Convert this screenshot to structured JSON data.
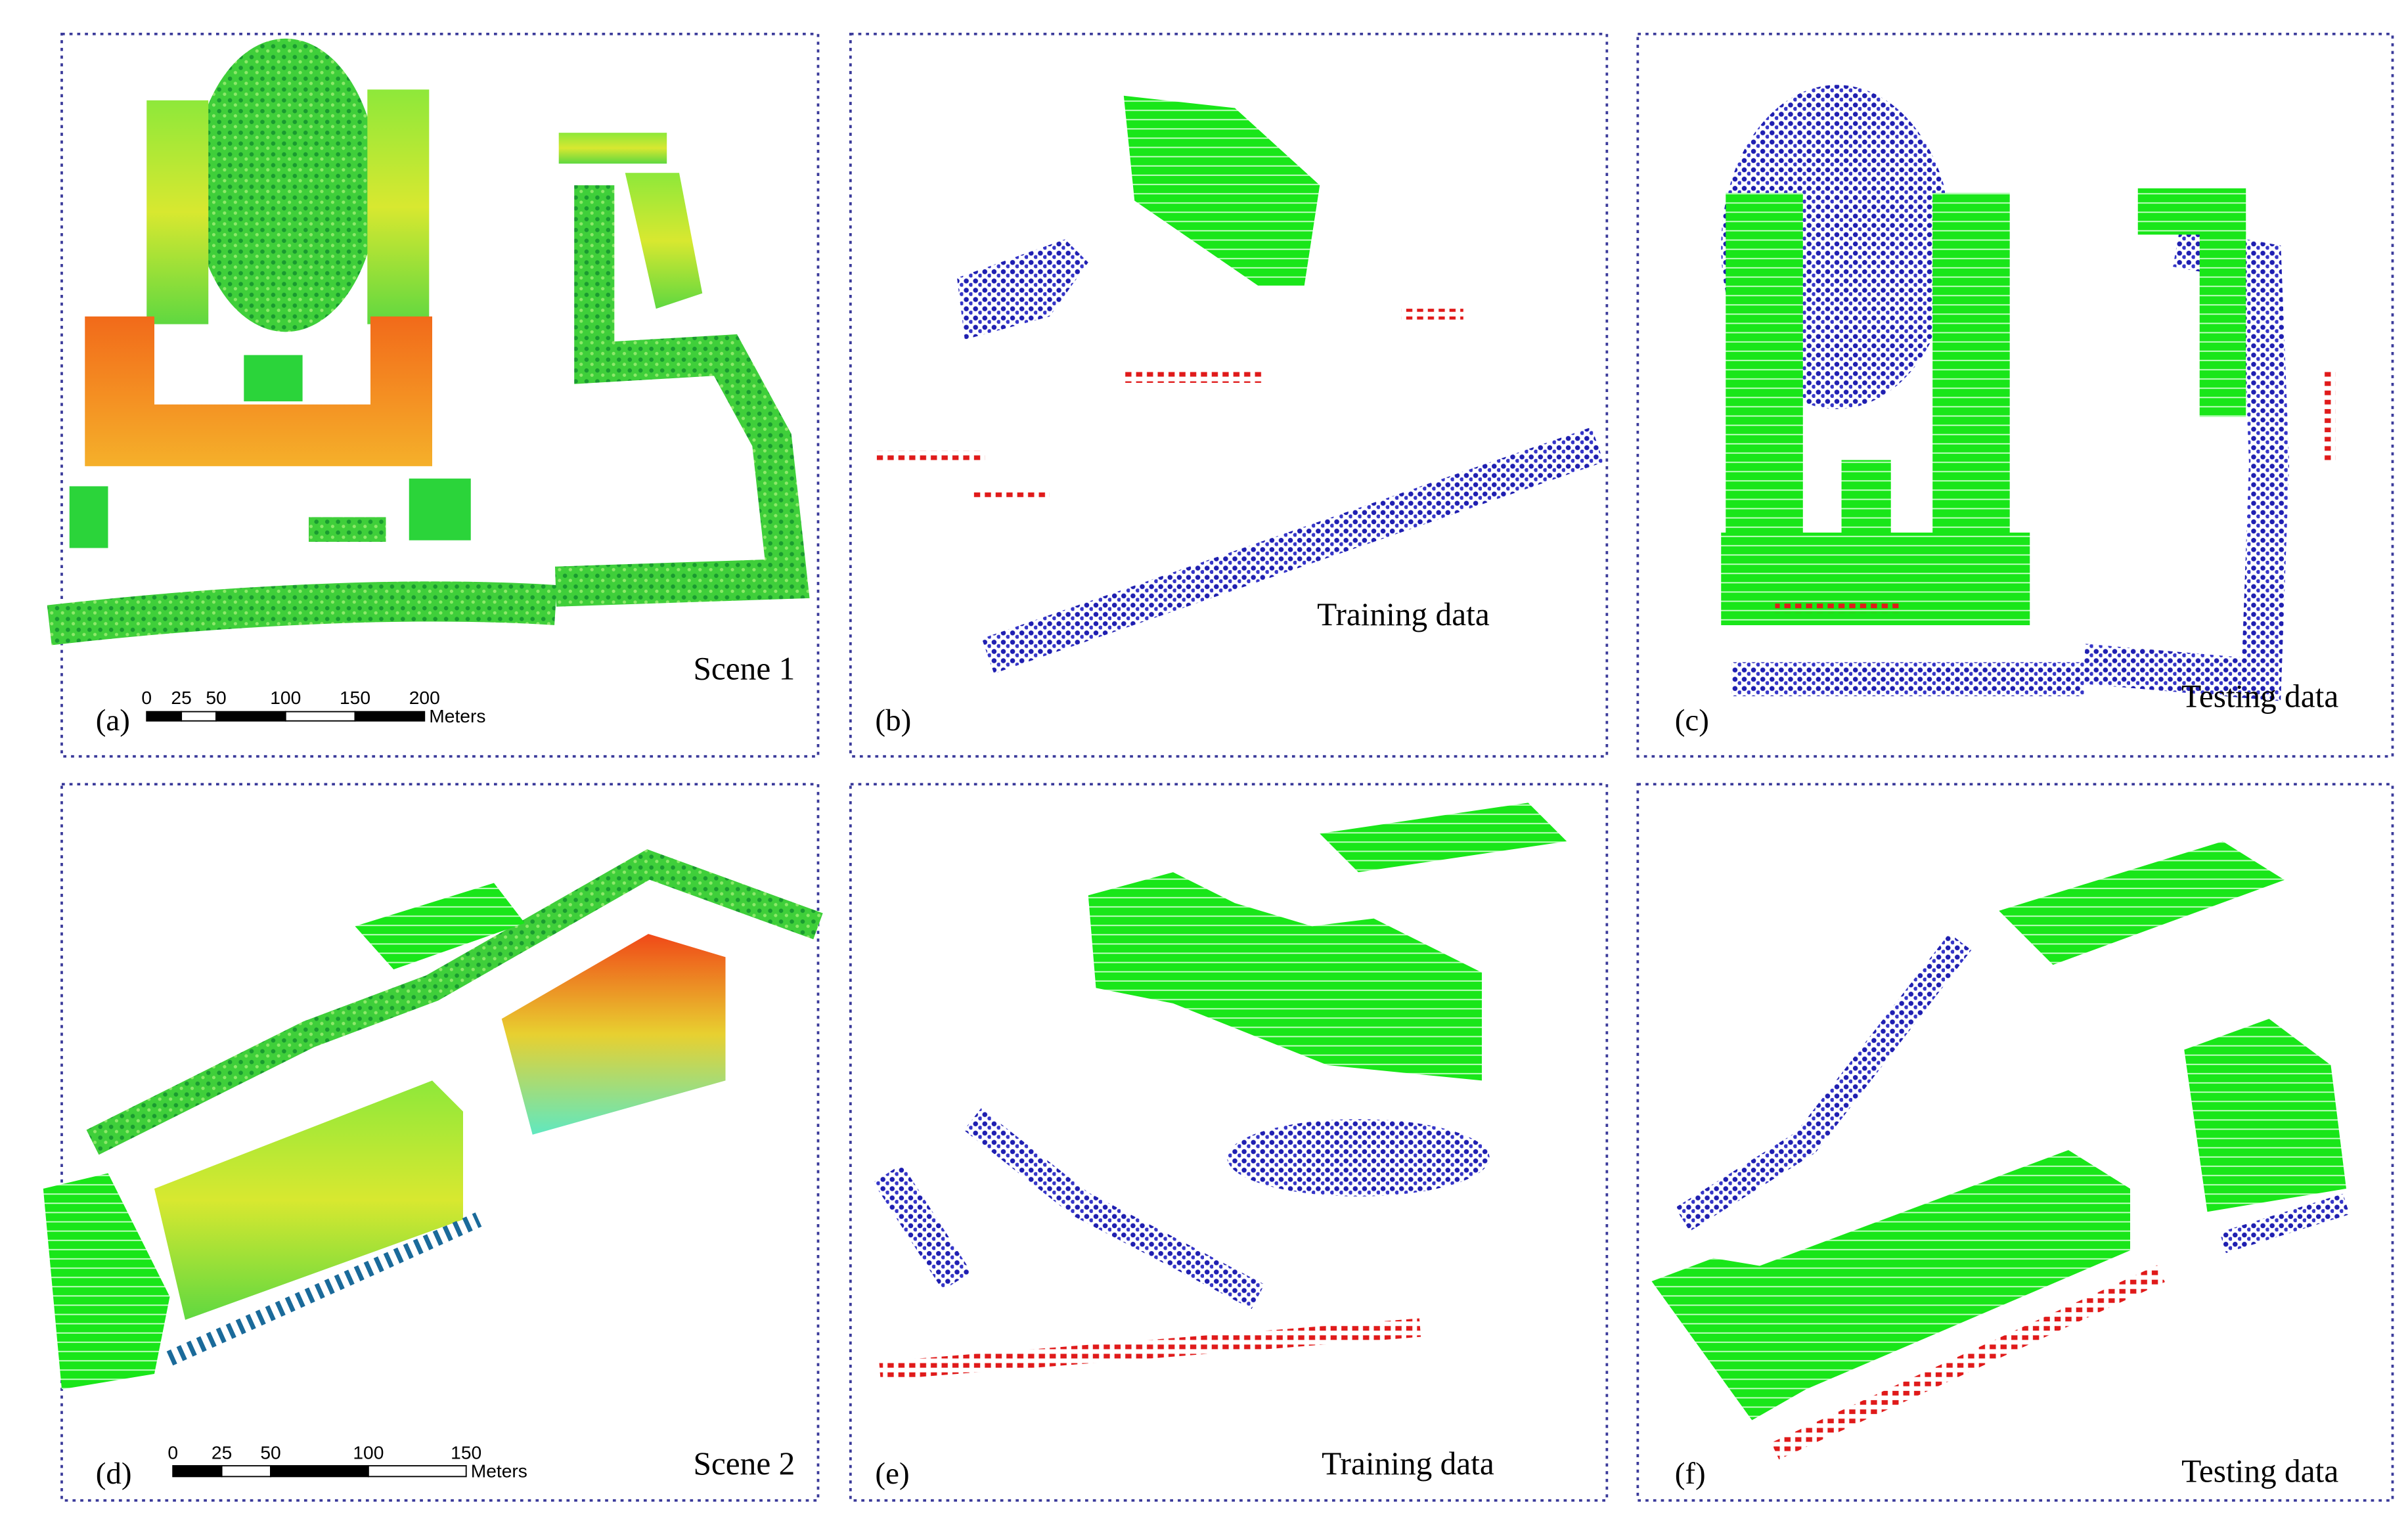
{
  "panels": [
    {
      "label": "(a)",
      "caption": "Scene 1",
      "scale_bar": {
        "ticks": [
          0,
          25,
          50,
          100,
          150,
          200
        ],
        "unit": "Meters"
      }
    },
    {
      "label": "(b)",
      "caption": "Training data"
    },
    {
      "label": "(c)",
      "caption": "Testing data"
    },
    {
      "label": "(d)",
      "caption": "Scene 2",
      "scale_bar": {
        "ticks": [
          0,
          25,
          50,
          100,
          150
        ],
        "unit": "Meters"
      }
    },
    {
      "label": "(e)",
      "caption": "Training data"
    },
    {
      "label": "(f)",
      "caption": "Testing data"
    }
  ]
}
